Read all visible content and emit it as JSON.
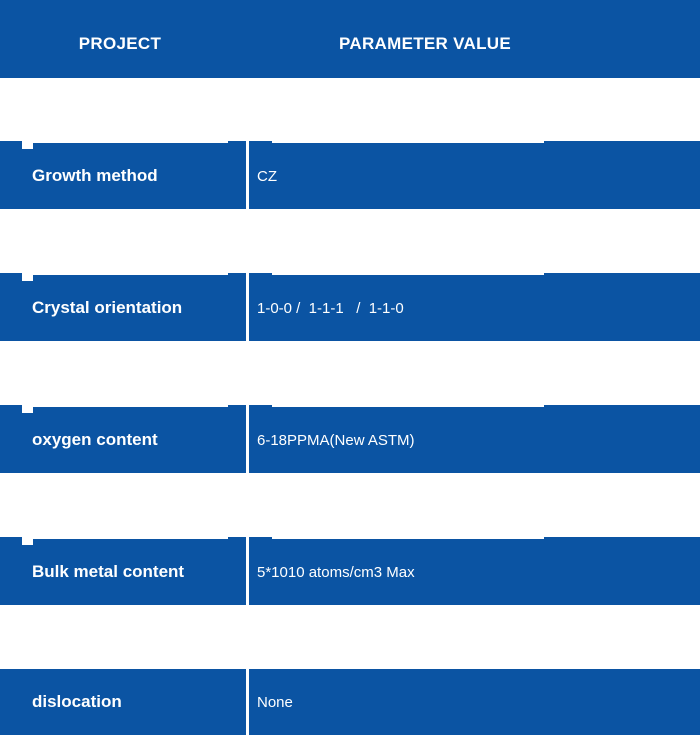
{
  "colors": {
    "primary_blue": "#0b54a3",
    "text_white": "#ffffff",
    "background": "#ffffff"
  },
  "header": {
    "col1": "PROJECT",
    "col2": "PARAMETER VALUE"
  },
  "table": {
    "rows": [
      {
        "project": "Growth method",
        "value": "CZ"
      },
      {
        "project": "Crystal orientation",
        "value": "1-0-0 /  1-1-1   /  1-1-0"
      },
      {
        "project": "oxygen content",
        "value": "6-18PPMA(New ASTM)"
      },
      {
        "project": "Bulk metal content",
        "value": "5*1010 atoms/cm3 Max"
      },
      {
        "project": "dislocation",
        "value": "None"
      }
    ]
  }
}
